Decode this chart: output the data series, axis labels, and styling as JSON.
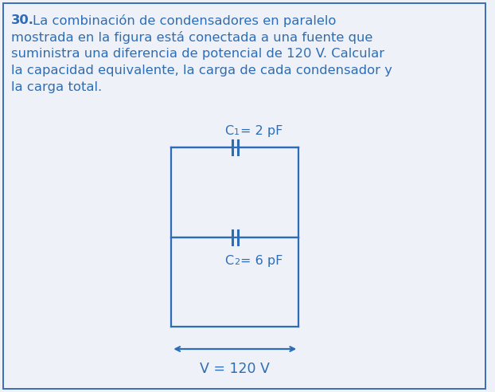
{
  "background_color": "#eef2f8",
  "border_color": "#3d6db5",
  "text_color": "#2e6db5",
  "bold_num": "30.",
  "paragraph_lines": [
    "La combinación de condensadores en paralelo",
    "mostrada en la figura está conectada a una fuente que",
    "suministra una diferencia de potencial de 120 V. Calcular",
    "la capacidad equivalente, la carga de cada condensador y",
    "la carga total."
  ],
  "C1_text": "C",
  "C1_sub": "1",
  "C1_val": "= 2 pF",
  "C2_text": "C",
  "C2_sub": "2",
  "C2_val": "= 6 pF",
  "V_label": "V = 120 V",
  "circuit_color": "#2e6db5",
  "font_size_para": 11.8,
  "font_size_circuit": 11.5
}
